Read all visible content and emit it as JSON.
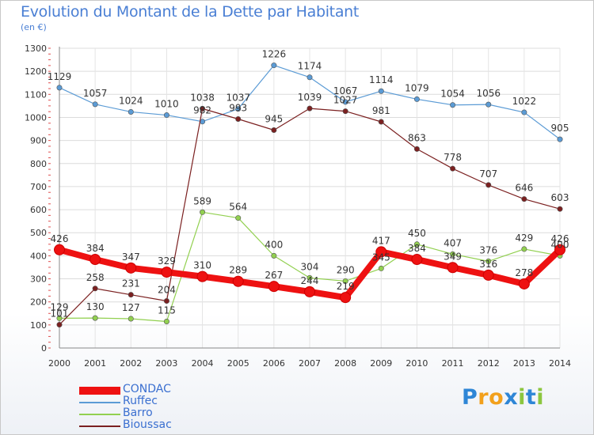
{
  "chart_title": "Evolution du Montant de la Dette par Habitant",
  "unit_label": "(en €)",
  "brand": {
    "text": "Proxiti",
    "letters": [
      "P",
      "r",
      "o",
      "x",
      "i",
      "t",
      "i"
    ],
    "colors": [
      "#2e86d6",
      "#f2a01c",
      "#f2a01c",
      "#2e86d6",
      "#8cc63f",
      "#2e86d6",
      "#8cc63f"
    ]
  },
  "chart_data": {
    "type": "line",
    "title": "Evolution du Montant de la Dette par Habitant",
    "ylabel": "(en €)",
    "xlabel": "",
    "ylim": [
      0,
      1300
    ],
    "yticks": [
      0,
      100,
      200,
      300,
      400,
      500,
      600,
      700,
      800,
      900,
      1000,
      1100,
      1200,
      1300
    ],
    "x": [
      "2000",
      "2001",
      "2002",
      "2003",
      "2004",
      "2005",
      "2006",
      "2007",
      "2008",
      "2009",
      "2010",
      "2011",
      "2012",
      "2013",
      "2014"
    ],
    "grid": true,
    "legend_position": "bottom-left",
    "series": [
      {
        "name": "CONDAC",
        "color": "#ee1111",
        "values": [
          426,
          384,
          347,
          329,
          310,
          289,
          267,
          244,
          219,
          417,
          384,
          349,
          316,
          278,
          426
        ],
        "label_text": [
          "426",
          "384",
          "347",
          "329",
          "310",
          "289",
          "267",
          "244",
          "219",
          "417",
          "384",
          "349",
          "316",
          "278",
          "426"
        ]
      },
      {
        "name": "Ruffec",
        "color": "#5b9bd5",
        "values": [
          1129,
          1057,
          1024,
          1010,
          982,
          1037,
          1226,
          1174,
          1067,
          1114,
          1079,
          1054,
          1056,
          1022,
          905
        ],
        "label_text": [
          "1129",
          "1057",
          "1024",
          "1010",
          "982",
          "1037",
          "1226",
          "1174",
          "1067",
          "1114",
          "1079",
          "1054",
          "1056",
          "1022",
          "905"
        ]
      },
      {
        "name": "Barro",
        "color": "#92d050",
        "values": [
          129,
          130,
          127,
          115,
          589,
          564,
          400,
          304,
          290,
          345,
          450,
          407,
          376,
          429,
          400
        ],
        "label_text": [
          "129",
          "130",
          "127",
          "115",
          "589",
          "564",
          "400",
          "304",
          "290",
          "345",
          "450",
          "407",
          "376",
          "429",
          "400"
        ]
      },
      {
        "name": "Bioussac",
        "color": "#7b2020",
        "values": [
          101,
          258,
          231,
          204,
          1038,
          993,
          945,
          1039,
          1027,
          981,
          863,
          778,
          707,
          646,
          603
        ],
        "label_text": [
          "101",
          "258",
          "231",
          "204",
          "1038",
          "993",
          "945",
          "1039",
          "1027",
          "981",
          "863",
          "778",
          "707",
          "646",
          "603"
        ]
      }
    ]
  }
}
